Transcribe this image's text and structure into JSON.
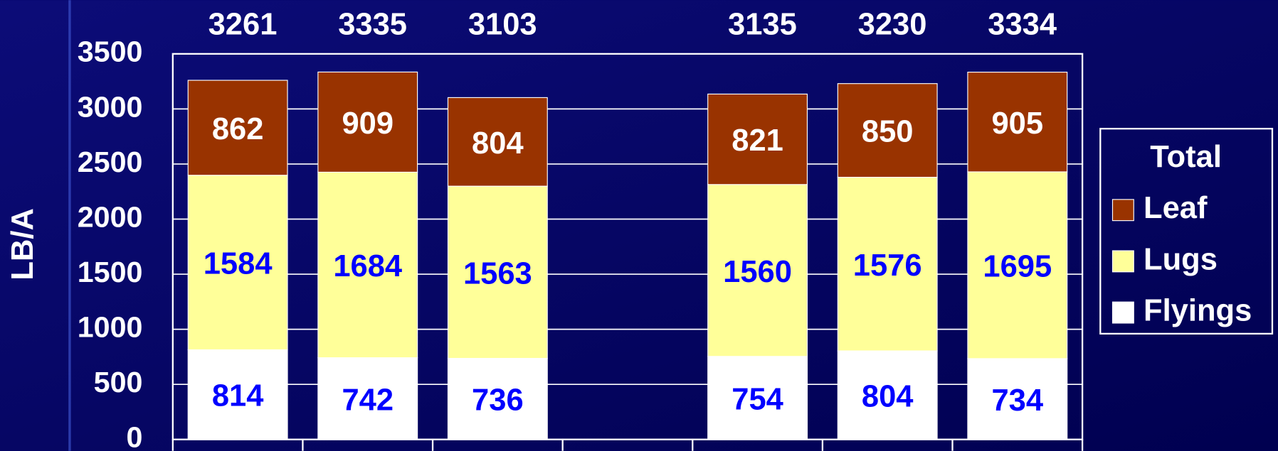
{
  "chart_data": {
    "type": "stacked_bar",
    "y_label": "LB/A",
    "categories": [
      null,
      null,
      null,
      null,
      null,
      null,
      null
    ],
    "totals": [
      3261,
      3335,
      3103,
      null,
      3135,
      3230,
      3334
    ],
    "legend_title": "Total",
    "legend": "right",
    "series": [
      {
        "name": "Leaf",
        "color": "#993300",
        "label_color": "#ffffff",
        "values": [
          862,
          909,
          804,
          null,
          821,
          850,
          905
        ]
      },
      {
        "name": "Lugs",
        "color": "#ffff99",
        "label_color": "#0000ff",
        "values": [
          1584,
          1684,
          1563,
          null,
          1560,
          1576,
          1695
        ]
      },
      {
        "name": "Flyings",
        "color": "#ffffff",
        "label_color": "#0000ff",
        "values": [
          814,
          742,
          736,
          null,
          754,
          804,
          734
        ]
      }
    ],
    "ylim": [
      0,
      3500
    ],
    "yticks": [
      0,
      500,
      1000,
      1500,
      2000,
      2500,
      3000,
      3500
    ],
    "grid": true
  }
}
